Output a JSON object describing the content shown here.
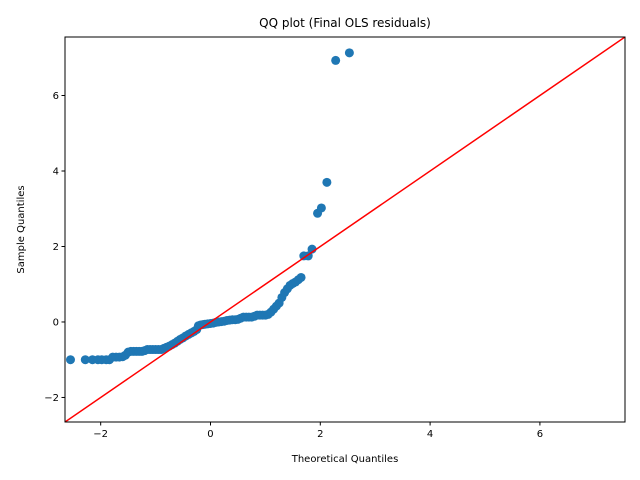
{
  "chart_data": {
    "type": "scatter",
    "title": "QQ plot (Final OLS residuals)",
    "xlabel": "Theoretical Quantiles",
    "ylabel": "Sample Quantiles",
    "xlim": [
      -2.65,
      7.55
    ],
    "ylim": [
      -2.65,
      7.55
    ],
    "xticks": [
      -2,
      0,
      2,
      4,
      6
    ],
    "yticks": [
      -2,
      0,
      2,
      4,
      6
    ],
    "grid": false,
    "colors": {
      "points": "#1f77b4",
      "reference_line": "#ff0000"
    },
    "reference_line": {
      "x": [
        -2.65,
        7.55
      ],
      "y": [
        -2.65,
        7.55
      ]
    },
    "series": [
      {
        "points": [
          [
            -2.55,
            -1.0
          ],
          [
            -2.28,
            -1.0
          ],
          [
            -2.15,
            -1.0
          ],
          [
            -2.05,
            -1.0
          ],
          [
            -1.98,
            -1.0
          ],
          [
            -1.9,
            -1.0
          ],
          [
            -1.84,
            -1.0
          ],
          [
            -1.78,
            -0.93
          ],
          [
            -1.72,
            -0.93
          ],
          [
            -1.66,
            -0.93
          ],
          [
            -1.6,
            -0.92
          ],
          [
            -1.55,
            -0.88
          ],
          [
            -1.5,
            -0.8
          ],
          [
            -1.45,
            -0.78
          ],
          [
            -1.4,
            -0.78
          ],
          [
            -1.35,
            -0.78
          ],
          [
            -1.3,
            -0.78
          ],
          [
            -1.25,
            -0.78
          ],
          [
            -1.2,
            -0.76
          ],
          [
            -1.15,
            -0.73
          ],
          [
            -1.1,
            -0.73
          ],
          [
            -1.05,
            -0.73
          ],
          [
            -1.0,
            -0.73
          ],
          [
            -0.95,
            -0.73
          ],
          [
            -0.9,
            -0.73
          ],
          [
            -0.85,
            -0.7
          ],
          [
            -0.8,
            -0.67
          ],
          [
            -0.75,
            -0.64
          ],
          [
            -0.7,
            -0.6
          ],
          [
            -0.65,
            -0.56
          ],
          [
            -0.6,
            -0.51
          ],
          [
            -0.55,
            -0.46
          ],
          [
            -0.5,
            -0.42
          ],
          [
            -0.45,
            -0.37
          ],
          [
            -0.4,
            -0.33
          ],
          [
            -0.35,
            -0.29
          ],
          [
            -0.3,
            -0.25
          ],
          [
            -0.25,
            -0.2
          ],
          [
            -0.22,
            -0.1
          ],
          [
            -0.18,
            -0.08
          ],
          [
            -0.14,
            -0.07
          ],
          [
            -0.1,
            -0.06
          ],
          [
            -0.05,
            -0.05
          ],
          [
            0.0,
            -0.04
          ],
          [
            0.05,
            -0.03
          ],
          [
            0.1,
            -0.01
          ],
          [
            0.15,
            0.0
          ],
          [
            0.2,
            0.01
          ],
          [
            0.25,
            0.02
          ],
          [
            0.3,
            0.04
          ],
          [
            0.35,
            0.05
          ],
          [
            0.4,
            0.06
          ],
          [
            0.45,
            0.06
          ],
          [
            0.5,
            0.07
          ],
          [
            0.55,
            0.1
          ],
          [
            0.6,
            0.13
          ],
          [
            0.65,
            0.13
          ],
          [
            0.7,
            0.13
          ],
          [
            0.75,
            0.13
          ],
          [
            0.8,
            0.15
          ],
          [
            0.85,
            0.18
          ],
          [
            0.9,
            0.18
          ],
          [
            0.95,
            0.18
          ],
          [
            1.0,
            0.18
          ],
          [
            1.05,
            0.2
          ],
          [
            1.1,
            0.26
          ],
          [
            1.15,
            0.34
          ],
          [
            1.2,
            0.42
          ],
          [
            1.25,
            0.5
          ],
          [
            1.3,
            0.65
          ],
          [
            1.35,
            0.78
          ],
          [
            1.4,
            0.88
          ],
          [
            1.45,
            0.97
          ],
          [
            1.5,
            1.02
          ],
          [
            1.55,
            1.06
          ],
          [
            1.6,
            1.12
          ],
          [
            1.65,
            1.18
          ],
          [
            1.7,
            1.75
          ],
          [
            1.78,
            1.75
          ],
          [
            1.85,
            1.93
          ],
          [
            1.95,
            2.88
          ],
          [
            2.02,
            3.02
          ],
          [
            2.12,
            3.7
          ],
          [
            2.28,
            6.93
          ],
          [
            2.53,
            7.13
          ]
        ]
      }
    ]
  }
}
